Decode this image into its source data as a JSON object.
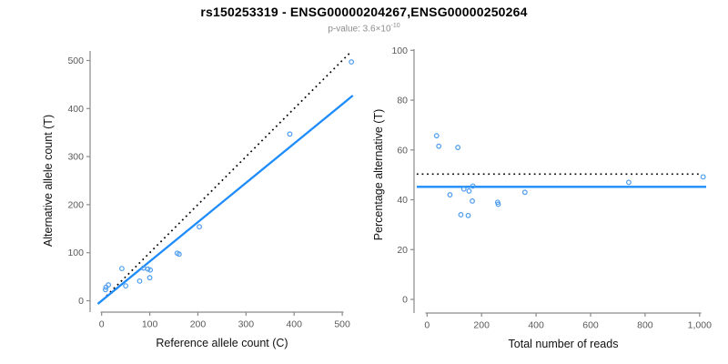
{
  "header": {
    "title": "rs150253319 - ENSG00000204267,ENSG00000250264",
    "subtitle_text": "p-value: 3.6×10",
    "subtitle_exponent": "-10"
  },
  "colors": {
    "accent_blue": "#1E8CFC",
    "point_blue": "#4C9CF0",
    "dotted_black": "#000000",
    "axis_gray": "#8a8a8a",
    "tick_text": "#595959",
    "label_text": "#111111",
    "subtitle_gray": "#8c8c8c"
  },
  "chart_data": [
    {
      "type": "scatter",
      "name": "allele-counts",
      "xlabel": "Reference allele count (C)",
      "ylabel": "Alternative allele count (T)",
      "xlim": [
        -20,
        540
      ],
      "ylim": [
        -20,
        520
      ],
      "grid": false,
      "legend": "none",
      "x_ticks": {
        "values": [
          0,
          100,
          200,
          300,
          400,
          500
        ],
        "labels": [
          "0",
          "100",
          "200",
          "300",
          "400",
          "500"
        ]
      },
      "y_ticks": {
        "values": [
          0,
          100,
          200,
          300,
          400,
          500
        ],
        "labels": [
          "0",
          "100",
          "200",
          "300",
          "400",
          "500"
        ]
      },
      "points": [
        [
          8,
          23
        ],
        [
          9,
          28
        ],
        [
          14,
          33
        ],
        [
          42,
          67
        ],
        [
          50,
          31
        ],
        [
          79,
          41
        ],
        [
          87,
          68
        ],
        [
          96,
          66
        ],
        [
          101,
          64
        ],
        [
          100,
          48
        ],
        [
          157,
          99
        ],
        [
          161,
          97
        ],
        [
          203,
          154
        ],
        [
          391,
          347
        ],
        [
          519,
          497
        ]
      ],
      "lines": [
        {
          "name": "identity-line",
          "dash": "dotted",
          "color": "#000000",
          "width": 1.7,
          "x1": 10,
          "y1": 10,
          "x2": 516,
          "y2": 516
        },
        {
          "name": "regression-line",
          "dash": "solid",
          "color": "#1E8CFC",
          "width": 2.3,
          "x1": -8,
          "y1": -6.5,
          "x2": 522,
          "y2": 427
        }
      ]
    },
    {
      "type": "scatter",
      "name": "percentage-vs-reads",
      "xlabel": "Total number of reads",
      "ylabel": "Percentage alternative (T)",
      "xlim": [
        -40,
        1060
      ],
      "ylim": [
        -4,
        104
      ],
      "grid": false,
      "legend": "none",
      "x_ticks": {
        "values": [
          0,
          200,
          400,
          600,
          800,
          1000
        ],
        "labels": [
          "0",
          "200",
          "400",
          "600",
          "800",
          "1,000"
        ]
      },
      "y_ticks": {
        "values": [
          0,
          20,
          40,
          60,
          80,
          100
        ],
        "labels": [
          "0",
          "20",
          "40",
          "60",
          "80",
          "100"
        ]
      },
      "points": [
        [
          35,
          65.7
        ],
        [
          43,
          61.5
        ],
        [
          113,
          61
        ],
        [
          84,
          42
        ],
        [
          124,
          34
        ],
        [
          135,
          44.3
        ],
        [
          151,
          33.7
        ],
        [
          154,
          43.5
        ],
        [
          166,
          39.5
        ],
        [
          168,
          45.5
        ],
        [
          259,
          39
        ],
        [
          261,
          38.2
        ],
        [
          359,
          43
        ],
        [
          740,
          47
        ],
        [
          1013,
          49.2
        ]
      ],
      "lines": [
        {
          "name": "expected-ratio-line",
          "dash": "dotted",
          "color": "#000000",
          "width": 1.7,
          "y1": 50.3,
          "x1": -38,
          "x2": 1003,
          "y2": 50.3
        },
        {
          "name": "mean-percentage-line",
          "dash": "solid",
          "color": "#1E8CFC",
          "width": 2.3,
          "y1": 45.2,
          "x1": -38,
          "x2": 1024,
          "y2": 45.2
        }
      ]
    }
  ]
}
